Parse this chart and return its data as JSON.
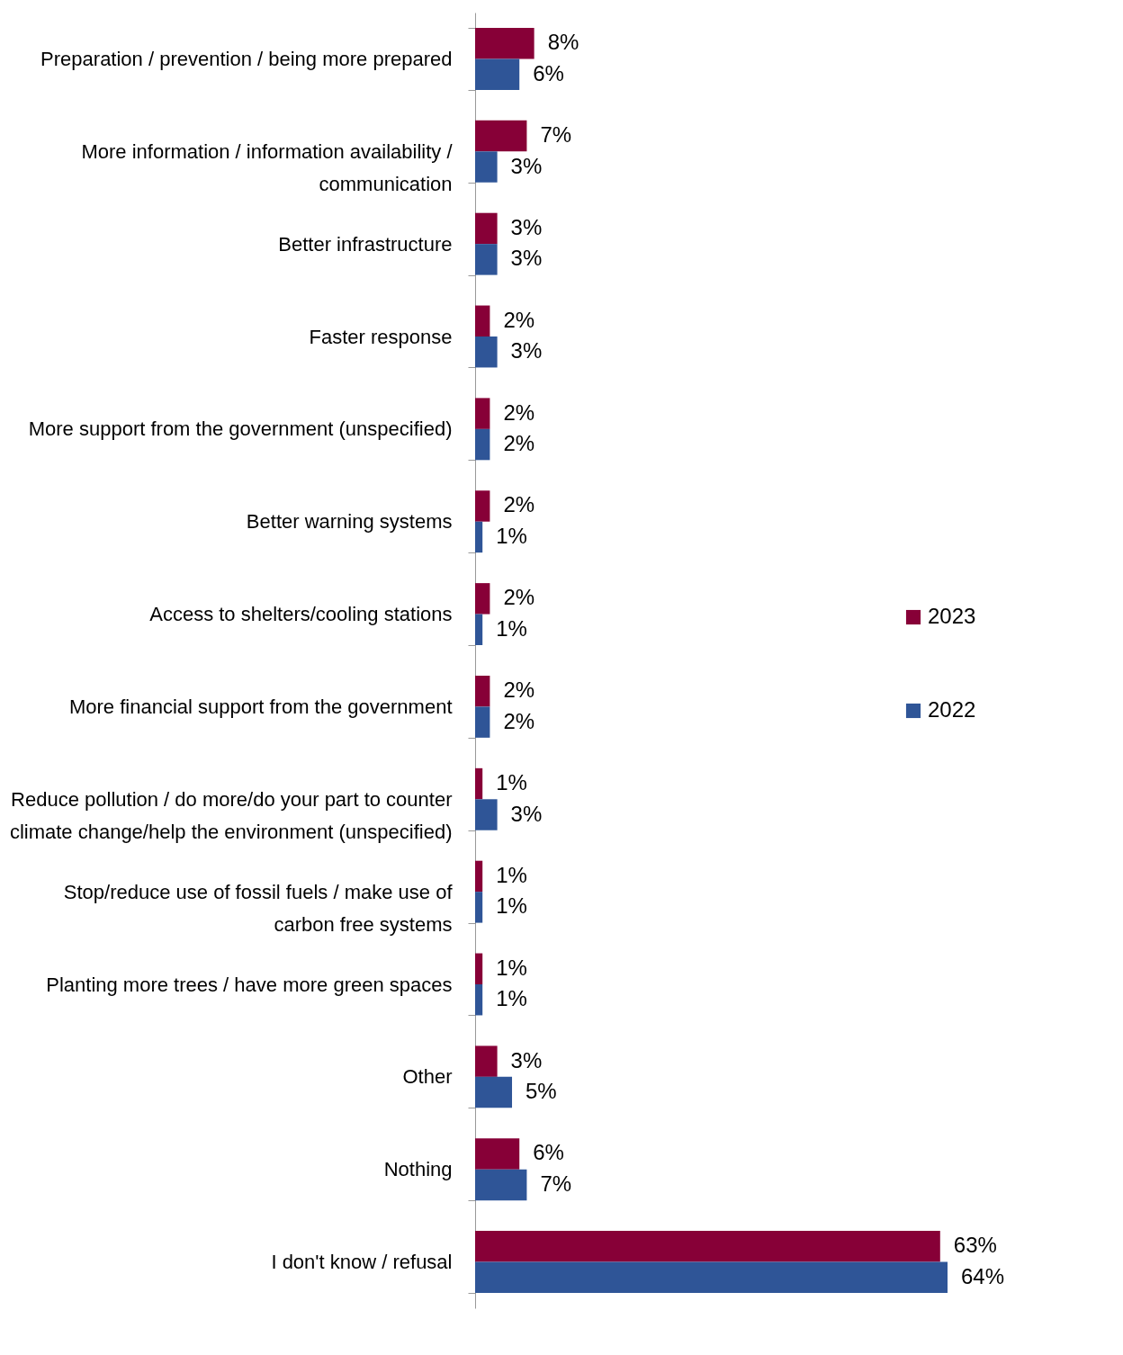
{
  "chart_data": {
    "type": "bar",
    "orientation": "horizontal",
    "legend": "right",
    "tick_labels": "y",
    "categories": [
      "Preparation / prevention / being more prepared",
      "More information / information availability / communication",
      "Better infrastructure",
      "Faster response",
      "More support from the government (unspecified)",
      "Better warning systems",
      "Access to shelters/cooling stations",
      "More financial support from the government",
      "Reduce pollution / do more/do your part to counter climate change/help the environment (unspecified)",
      "Stop/reduce use of fossil fuels / make use of carbon free systems",
      "Planting more trees / have more green spaces",
      "Other",
      "Nothing",
      "I don't know / refusal"
    ],
    "series": [
      {
        "name": "2023",
        "color": "#870037",
        "values": [
          8,
          7,
          3,
          2,
          2,
          2,
          2,
          2,
          1,
          1,
          1,
          3,
          6,
          63
        ],
        "value_labels": [
          "8%",
          "7%",
          "3%",
          "2%",
          "2%",
          "2%",
          "2%",
          "2%",
          "1%",
          "1%",
          "1%",
          "3%",
          "6%",
          "63%"
        ]
      },
      {
        "name": "2022",
        "color": "#2f5597",
        "values": [
          6,
          3,
          3,
          3,
          2,
          1,
          1,
          2,
          3,
          1,
          1,
          5,
          7,
          64
        ],
        "value_labels": [
          "6%",
          "3%",
          "3%",
          "3%",
          "2%",
          "1%",
          "1%",
          "2%",
          "3%",
          "1%",
          "1%",
          "5%",
          "7%",
          "64%"
        ]
      }
    ]
  }
}
